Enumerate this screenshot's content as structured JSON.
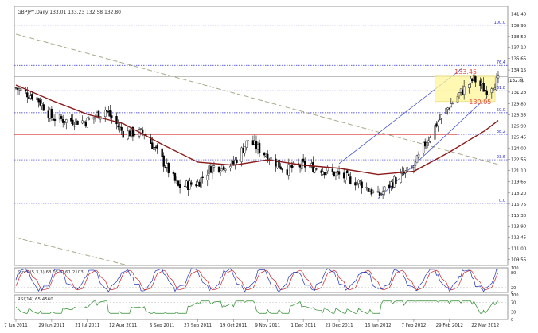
{
  "chart_data": [
    {
      "type": "candlestick",
      "title": "GBPJPY,Daily  133.01 133.23 132.58 132.80",
      "ylim": [
        108.8,
        142.4
      ],
      "y_ticks": [
        "141.40",
        "139.95",
        "138.50",
        "137.10",
        "135.65",
        "134.15",
        "132.80",
        "131.28",
        "129.80",
        "128.35",
        "126.90",
        "125.45",
        "124.00",
        "122.55",
        "121.10",
        "119.65",
        "118.20",
        "116.75",
        "115.30",
        "113.90",
        "112.45",
        "111.00",
        "109.55"
      ],
      "x_ticks": [
        "7 Jun 2011",
        "29 Jun 2011",
        "21 Jul 2011",
        "12 Aug 2011",
        "5 Sep 2011",
        "27 Sep 2011",
        "19 Oct 2011",
        "9 Nov 2011",
        "1 Dec 2011",
        "23 Dec 2011",
        "16 Jan 2012",
        "7 Feb 2012",
        "29 Feb 2012",
        "22 Mar 2012"
      ],
      "x_range": [
        "2011-06-07",
        "2012-03-30"
      ],
      "last_price": "132.80",
      "series": [
        {
          "name": "price",
          "style": "candlestick",
          "color": "#000000"
        },
        {
          "name": "moving average",
          "style": "line",
          "color": "#8b1a1a",
          "points": [
            [
              "2011-06-07",
              132.2
            ],
            [
              "2011-06-29",
              130.2
            ],
            [
              "2011-07-21",
              128.4
            ],
            [
              "2011-08-12",
              127.2
            ],
            [
              "2011-09-05",
              124.5
            ],
            [
              "2011-09-27",
              122.2
            ],
            [
              "2011-10-19",
              121.8
            ],
            [
              "2011-11-09",
              122.5
            ],
            [
              "2011-12-01",
              121.8
            ],
            [
              "2011-12-23",
              121.4
            ],
            [
              "2012-01-16",
              120.6
            ],
            [
              "2012-02-07",
              121.0
            ],
            [
              "2012-02-29",
              123.5
            ],
            [
              "2012-03-22",
              126.3
            ],
            [
              "2012-03-30",
              127.6
            ]
          ]
        }
      ],
      "fibonacci_levels": [
        {
          "label": "100.0",
          "value": 139.95
        },
        {
          "label": "76.4",
          "value": 134.75
        },
        {
          "label": "61.8",
          "value": 131.45
        },
        {
          "label": "50.0",
          "value": 128.6
        },
        {
          "label": "38.2",
          "value": 125.8
        },
        {
          "label": "23.6",
          "value": 122.5
        },
        {
          "label": "0.0",
          "value": 116.85
        }
      ],
      "horizontal_lines": [
        {
          "value": 125.8,
          "color": "#cc0000"
        },
        {
          "value": 133.3,
          "color": "#999999"
        }
      ],
      "channel": {
        "lower": [
          [
            "2012-01-16",
            117.5
          ],
          [
            "2012-03-30",
            132.0
          ]
        ],
        "upper": [
          [
            "2011-12-23",
            122.0
          ],
          [
            "2012-03-08",
            134.4
          ]
        ]
      },
      "diagonal_trendlines": [
        {
          "from": [
            "2011-06-07",
            138.8
          ],
          "to": [
            "2012-03-30",
            121.9
          ]
        },
        {
          "from": [
            "2011-06-07",
            112.4
          ],
          "to": [
            "2011-08-15",
            108.8
          ]
        }
      ],
      "highlight_box": {
        "from": [
          "2012-02-29",
          130.05
        ],
        "to": [
          "2012-03-30",
          133.45
        ]
      },
      "annotations": [
        {
          "text": "133.45",
          "color": "#e8463a"
        },
        {
          "text": "130.05",
          "color": "#e8463a"
        }
      ]
    },
    {
      "type": "line",
      "title": "Stoch(5,3,3) 68.0570 61.2103",
      "ylim": [
        0,
        100
      ],
      "y_ticks": [
        "100",
        "80",
        "20",
        "0"
      ],
      "series": [
        {
          "name": "main",
          "color": "#2233bb"
        },
        {
          "name": "signal",
          "color": "#cc2222"
        }
      ]
    },
    {
      "type": "line",
      "title": "RSI(14) 65.4560",
      "ylim": [
        0,
        100
      ],
      "y_ticks": [
        "100",
        "70",
        "30",
        "0"
      ],
      "series": [
        {
          "name": "rsi",
          "color": "#2a8a2a"
        }
      ]
    }
  ]
}
